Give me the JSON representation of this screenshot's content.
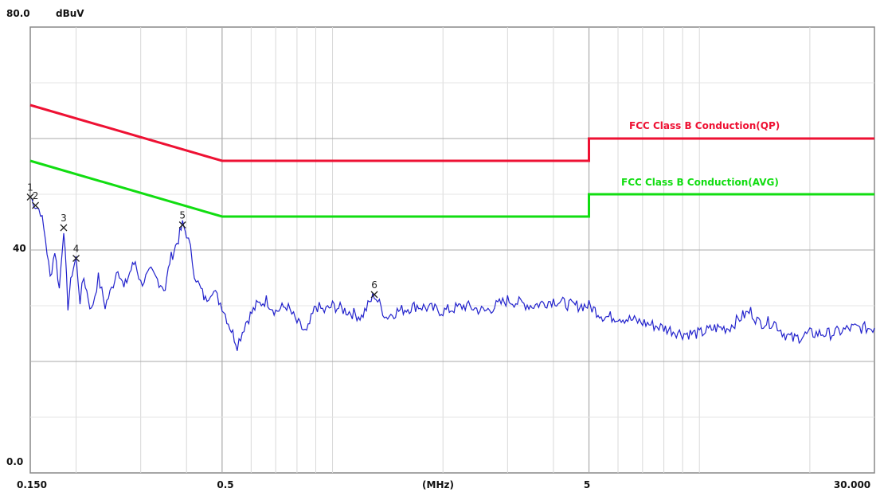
{
  "chart_data": {
    "type": "line",
    "x_scale": "log",
    "xlim": [
      0.15,
      30
    ],
    "ylim": [
      0,
      80
    ],
    "y_unit_label": "dBuV",
    "x_unit_label": "(MHz)",
    "y_tick_labels": [
      {
        "value": 80,
        "text": "80.0"
      },
      {
        "value": 40,
        "text": "40"
      },
      {
        "value": 0,
        "text": "0.0"
      }
    ],
    "x_tick_labels": [
      {
        "value": 0.15,
        "text": "0.150"
      },
      {
        "value": 0.5,
        "text": "0.5"
      },
      {
        "value": 5,
        "text": "5"
      },
      {
        "value": 30,
        "text": "30.000"
      }
    ],
    "grid": true,
    "limit_lines": [
      {
        "name": "FCC Class B Conduction(QP)",
        "color": "#ee1133",
        "points": [
          [
            0.15,
            66
          ],
          [
            0.5,
            56
          ],
          [
            5,
            56
          ],
          [
            5,
            60
          ],
          [
            30,
            60
          ]
        ]
      },
      {
        "name": "FCC Class B Conduction(AVG)",
        "color": "#11dd11",
        "points": [
          [
            0.15,
            56
          ],
          [
            0.5,
            46
          ],
          [
            5,
            46
          ],
          [
            5,
            50
          ],
          [
            30,
            50
          ]
        ]
      }
    ],
    "trace": {
      "color": "#2222cc",
      "points": [
        [
          0.15,
          49.5
        ],
        [
          0.155,
          48
        ],
        [
          0.16,
          47
        ],
        [
          0.165,
          42
        ],
        [
          0.17,
          35
        ],
        [
          0.175,
          40
        ],
        [
          0.18,
          33
        ],
        [
          0.185,
          44
        ],
        [
          0.19,
          30
        ],
        [
          0.195,
          36
        ],
        [
          0.2,
          38.5
        ],
        [
          0.205,
          31
        ],
        [
          0.21,
          35
        ],
        [
          0.22,
          29
        ],
        [
          0.23,
          35
        ],
        [
          0.24,
          30
        ],
        [
          0.25,
          33
        ],
        [
          0.26,
          37
        ],
        [
          0.27,
          33
        ],
        [
          0.28,
          36
        ],
        [
          0.29,
          38
        ],
        [
          0.3,
          34
        ],
        [
          0.32,
          36
        ],
        [
          0.34,
          34
        ],
        [
          0.35,
          33
        ],
        [
          0.36,
          38
        ],
        [
          0.37,
          40
        ],
        [
          0.38,
          42
        ],
        [
          0.39,
          44.5
        ],
        [
          0.4,
          43
        ],
        [
          0.41,
          40
        ],
        [
          0.42,
          36
        ],
        [
          0.43,
          34
        ],
        [
          0.45,
          31
        ],
        [
          0.47,
          33
        ],
        [
          0.5,
          30
        ],
        [
          0.52,
          27
        ],
        [
          0.55,
          23
        ],
        [
          0.58,
          27
        ],
        [
          0.62,
          30
        ],
        [
          0.66,
          31
        ],
        [
          0.7,
          29
        ],
        [
          0.75,
          30
        ],
        [
          0.8,
          27
        ],
        [
          0.85,
          25
        ],
        [
          0.9,
          30
        ],
        [
          0.95,
          29
        ],
        [
          1.0,
          30
        ],
        [
          1.1,
          29
        ],
        [
          1.2,
          28
        ],
        [
          1.3,
          32
        ],
        [
          1.4,
          28
        ],
        [
          1.5,
          29
        ],
        [
          1.7,
          30
        ],
        [
          2.0,
          29
        ],
        [
          2.3,
          30
        ],
        [
          2.6,
          29
        ],
        [
          3.0,
          31
        ],
        [
          3.5,
          30
        ],
        [
          4.0,
          31
        ],
        [
          4.5,
          30
        ],
        [
          5.0,
          30
        ],
        [
          5.5,
          28
        ],
        [
          6.0,
          28
        ],
        [
          7.0,
          27
        ],
        [
          8.0,
          26
        ],
        [
          9.0,
          25
        ],
        [
          10.0,
          25
        ],
        [
          11.0,
          26
        ],
        [
          12.0,
          26
        ],
        [
          13.0,
          28
        ],
        [
          13.8,
          29
        ],
        [
          14.5,
          27
        ],
        [
          16.0,
          27
        ],
        [
          17.0,
          25
        ],
        [
          18.0,
          24
        ],
        [
          20.0,
          25
        ],
        [
          23.0,
          25
        ],
        [
          26.0,
          26
        ],
        [
          30.0,
          26
        ]
      ]
    },
    "markers": [
      {
        "label": "1",
        "x": 0.15,
        "y": 49.5
      },
      {
        "label": "2",
        "x": 0.155,
        "y": 48
      },
      {
        "label": "3",
        "x": 0.185,
        "y": 44
      },
      {
        "label": "4",
        "x": 0.2,
        "y": 38.5
      },
      {
        "label": "5",
        "x": 0.39,
        "y": 44.5
      },
      {
        "label": "6",
        "x": 1.3,
        "y": 32
      }
    ]
  }
}
